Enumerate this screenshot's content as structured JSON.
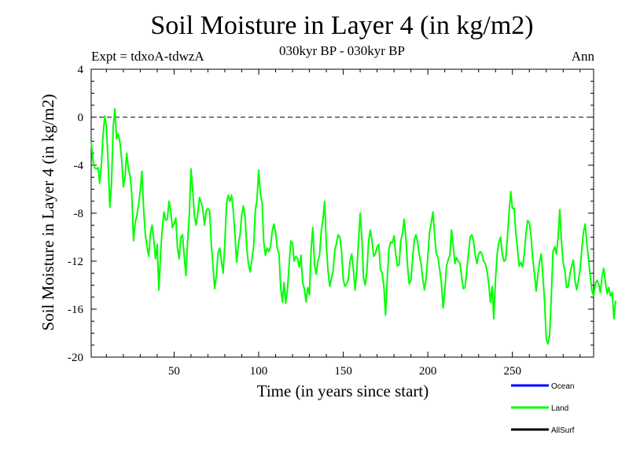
{
  "chart_data": {
    "type": "line",
    "title": "Soil Moisture in Layer 4 (in kg/m2)",
    "subtitle_left": "Expt = tdxoA-tdwzA",
    "subtitle_center": "030kyr BP - 030kyr BP",
    "subtitle_right": "Ann",
    "xlabel": "Time (in years since start)",
    "ylabel": "Soil Moisture in Layer 4 (in kg/m2)",
    "xlim": [
      1,
      298
    ],
    "ylim": [
      -20,
      4
    ],
    "x_ticks": [
      50,
      100,
      150,
      200,
      250
    ],
    "y_ticks": [
      4,
      0,
      -4,
      -8,
      -12,
      -16,
      -20
    ],
    "reference_line": 0,
    "legend_position": "bottom-right",
    "legend": [
      {
        "name": "Ocean",
        "color": "#0000ff"
      },
      {
        "name": "Land",
        "color": "#00ff00"
      },
      {
        "name": "AllSurf",
        "color": "#000000"
      }
    ],
    "series": [
      {
        "name": "Land",
        "color": "#00ff00",
        "x_start": 1,
        "x_step": 1,
        "values": [
          -2.0,
          -3.6,
          -4.2,
          -4.3,
          -4.2,
          -5.5,
          -4.0,
          -1.5,
          0.1,
          -0.8,
          -3.8,
          -7.5,
          -5.5,
          -0.8,
          0.7,
          -1.8,
          -1.4,
          -2.1,
          -3.5,
          -5.8,
          -5.0,
          -3.0,
          -4.3,
          -4.9,
          -6.4,
          -10.3,
          -8.8,
          -8.2,
          -7.3,
          -6.1,
          -4.5,
          -7.7,
          -9.8,
          -10.8,
          -11.6,
          -9.7,
          -9.0,
          -10.2,
          -11.8,
          -10.6,
          -14.4,
          -11.4,
          -9.3,
          -7.9,
          -8.6,
          -8.5,
          -7.0,
          -7.8,
          -9.2,
          -8.9,
          -8.4,
          -10.9,
          -11.8,
          -10.0,
          -9.8,
          -11.6,
          -13.2,
          -10.3,
          -8.1,
          -4.3,
          -6.1,
          -8.2,
          -9.0,
          -8.0,
          -6.7,
          -7.1,
          -7.7,
          -9.0,
          -7.8,
          -7.6,
          -7.8,
          -10.6,
          -12.4,
          -14.3,
          -13.2,
          -11.3,
          -10.9,
          -12.0,
          -13.0,
          -10.5,
          -7.2,
          -6.5,
          -7.0,
          -6.5,
          -7.8,
          -9.9,
          -12.1,
          -10.6,
          -9.8,
          -8.1,
          -7.4,
          -8.4,
          -11.0,
          -12.3,
          -12.9,
          -11.8,
          -10.8,
          -7.8,
          -6.9,
          -4.4,
          -6.4,
          -7.1,
          -10.4,
          -11.5,
          -10.9,
          -11.2,
          -10.8,
          -9.5,
          -8.9,
          -9.6,
          -10.9,
          -11.4,
          -14.2,
          -15.4,
          -13.8,
          -15.5,
          -14.4,
          -12.3,
          -10.3,
          -10.5,
          -12.0,
          -11.6,
          -11.8,
          -12.5,
          -11.5,
          -13.8,
          -14.3,
          -15.4,
          -14.2,
          -14.8,
          -11.0,
          -9.2,
          -12.3,
          -13.1,
          -12.0,
          -11.5,
          -9.5,
          -8.5,
          -7.0,
          -10.7,
          -12.8,
          -14.1,
          -13.4,
          -12.8,
          -11.1,
          -10.5,
          -9.8,
          -10.0,
          -11.2,
          -13.5,
          -14.1,
          -13.9,
          -13.5,
          -12.0,
          -11.4,
          -12.7,
          -14.4,
          -12.8,
          -10.4,
          -8.0,
          -10.1,
          -13.4,
          -14.0,
          -12.8,
          -10.3,
          -9.4,
          -10.3,
          -11.6,
          -11.4,
          -10.8,
          -10.6,
          -12.7,
          -13.0,
          -14.1,
          -16.5,
          -13.5,
          -11.0,
          -10.4,
          -10.5,
          -9.9,
          -11.4,
          -12.4,
          -12.3,
          -10.3,
          -9.7,
          -8.5,
          -10.0,
          -12.4,
          -13.9,
          -13.6,
          -11.8,
          -10.2,
          -9.8,
          -10.5,
          -11.5,
          -12.2,
          -13.5,
          -14.4,
          -13.4,
          -11.6,
          -9.6,
          -8.8,
          -7.9,
          -9.8,
          -11.4,
          -11.7,
          -12.7,
          -13.8,
          -15.9,
          -14.5,
          -12.4,
          -11.9,
          -11.5,
          -9.4,
          -10.7,
          -12.2,
          -11.7,
          -12.0,
          -12.2,
          -13.3,
          -14.3,
          -14.2,
          -12.8,
          -11.4,
          -10.0,
          -9.8,
          -10.3,
          -11.5,
          -12.2,
          -11.4,
          -11.2,
          -11.4,
          -12.0,
          -12.2,
          -12.8,
          -13.9,
          -15.4,
          -14.1,
          -16.8,
          -13.5,
          -11.4,
          -10.4,
          -10.0,
          -11.4,
          -12.0,
          -11.9,
          -10.1,
          -8.0,
          -6.2,
          -7.6,
          -7.6,
          -9.6,
          -11.0,
          -12.4,
          -12.1,
          -12.5,
          -11.4,
          -9.7,
          -8.6,
          -8.8,
          -9.9,
          -11.8,
          -13.0,
          -14.5,
          -13.2,
          -12.1,
          -11.4,
          -13.2,
          -15.3,
          -18.5,
          -18.9,
          -18.2,
          -14.9,
          -11.2,
          -10.8,
          -11.4,
          -10.0,
          -7.7,
          -10.4,
          -12.1,
          -12.8,
          -14.2,
          -14.1,
          -13.1,
          -12.4,
          -11.9,
          -13.6,
          -14.4,
          -13.6,
          -12.7,
          -11.0,
          -9.6,
          -8.9,
          -10.5,
          -11.9,
          -13.2,
          -14.5,
          -14.9,
          -13.9,
          -13.6,
          -13.9,
          -14.6,
          -13.2,
          -12.6,
          -13.8,
          -14.7,
          -14.2,
          -14.9,
          -14.6,
          -16.8,
          -15.3
        ]
      }
    ]
  }
}
